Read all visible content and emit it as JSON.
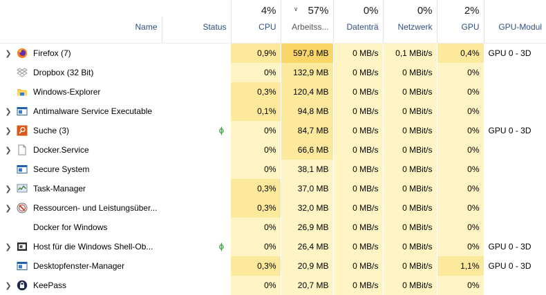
{
  "header": {
    "pct": {
      "cpu": "4%",
      "mem": "57%",
      "disk": "0%",
      "net": "0%",
      "gpu": "2%"
    },
    "labels": {
      "name": "Name",
      "status": "Status",
      "cpu": "CPU",
      "mem": "Arbeitss...",
      "disk": "Datenträ",
      "net": "Netzwerk",
      "gpu": "GPU",
      "gpu_module": "GPU-Modul"
    },
    "sort_indicator": "chevron-down-icon"
  },
  "rows": [
    {
      "name": "Firefox (7)",
      "icon": "firefox-icon",
      "expandable": true,
      "eco": false,
      "cpu": "0,9%",
      "mem": "597,8 MB",
      "disk": "0 MB/s",
      "net": "0,1 MBit/s",
      "gpu": "0,4%",
      "gpu_module": "GPU 0 - 3D"
    },
    {
      "name": "Dropbox (32 Bit)",
      "icon": "dropbox-icon",
      "expandable": false,
      "eco": false,
      "cpu": "0%",
      "mem": "132,9 MB",
      "disk": "0 MB/s",
      "net": "0 MBit/s",
      "gpu": "0%",
      "gpu_module": ""
    },
    {
      "name": "Windows-Explorer",
      "icon": "folder-icon",
      "expandable": false,
      "eco": false,
      "cpu": "0,3%",
      "mem": "120,4 MB",
      "disk": "0 MB/s",
      "net": "0 MBit/s",
      "gpu": "0%",
      "gpu_module": ""
    },
    {
      "name": "Antimalware Service Executable",
      "icon": "window-icon",
      "expandable": true,
      "eco": false,
      "cpu": "0,1%",
      "mem": "94,8 MB",
      "disk": "0 MB/s",
      "net": "0 MBit/s",
      "gpu": "0%",
      "gpu_module": ""
    },
    {
      "name": "Suche (3)",
      "icon": "search-app-icon",
      "expandable": true,
      "eco": true,
      "cpu": "0%",
      "mem": "84,7 MB",
      "disk": "0 MB/s",
      "net": "0 MBit/s",
      "gpu": "0%",
      "gpu_module": "GPU 0 - 3D"
    },
    {
      "name": "Docker.Service",
      "icon": "document-icon",
      "expandable": true,
      "eco": false,
      "cpu": "0%",
      "mem": "66,6 MB",
      "disk": "0 MB/s",
      "net": "0 MBit/s",
      "gpu": "0%",
      "gpu_module": ""
    },
    {
      "name": "Secure System",
      "icon": "window-icon",
      "expandable": false,
      "eco": false,
      "cpu": "0%",
      "mem": "38,1 MB",
      "disk": "0 MB/s",
      "net": "0 MBit/s",
      "gpu": "0%",
      "gpu_module": ""
    },
    {
      "name": "Task-Manager",
      "icon": "task-manager-icon",
      "expandable": true,
      "eco": false,
      "cpu": "0,3%",
      "mem": "37,0 MB",
      "disk": "0 MB/s",
      "net": "0 MBit/s",
      "gpu": "0%",
      "gpu_module": ""
    },
    {
      "name": "Ressourcen- und Leistungsüber...",
      "icon": "resource-monitor-icon",
      "expandable": true,
      "eco": false,
      "cpu": "0,3%",
      "mem": "32,0 MB",
      "disk": "0 MB/s",
      "net": "0 MBit/s",
      "gpu": "0%",
      "gpu_module": ""
    },
    {
      "name": "Docker for Windows",
      "icon": "",
      "expandable": false,
      "eco": false,
      "cpu": "0%",
      "mem": "26,9 MB",
      "disk": "0 MB/s",
      "net": "0 MBit/s",
      "gpu": "0%",
      "gpu_module": ""
    },
    {
      "name": "Host für die Windows Shell-Ob...",
      "icon": "shell-host-icon",
      "expandable": true,
      "eco": true,
      "cpu": "0%",
      "mem": "26,4 MB",
      "disk": "0 MB/s",
      "net": "0 MBit/s",
      "gpu": "0%",
      "gpu_module": "GPU 0 - 3D"
    },
    {
      "name": "Desktopfenster-Manager",
      "icon": "window-icon",
      "expandable": false,
      "eco": false,
      "cpu": "0,3%",
      "mem": "20,9 MB",
      "disk": "0 MB/s",
      "net": "0 MBit/s",
      "gpu": "1,1%",
      "gpu_module": "GPU 0 - 3D"
    },
    {
      "name": "KeePass",
      "icon": "keepass-icon",
      "expandable": true,
      "eco": false,
      "cpu": "0%",
      "mem": "20,7 MB",
      "disk": "0 MB/s",
      "net": "0 MBit/s",
      "gpu": "0%",
      "gpu_module": ""
    }
  ],
  "colors": {
    "heat_light": "#fff4c4",
    "heat_mid": "#fde99b",
    "heat_strong": "#f9d667",
    "header_text": "#2f4f7f",
    "eco_leaf": "#2e8b2e"
  }
}
